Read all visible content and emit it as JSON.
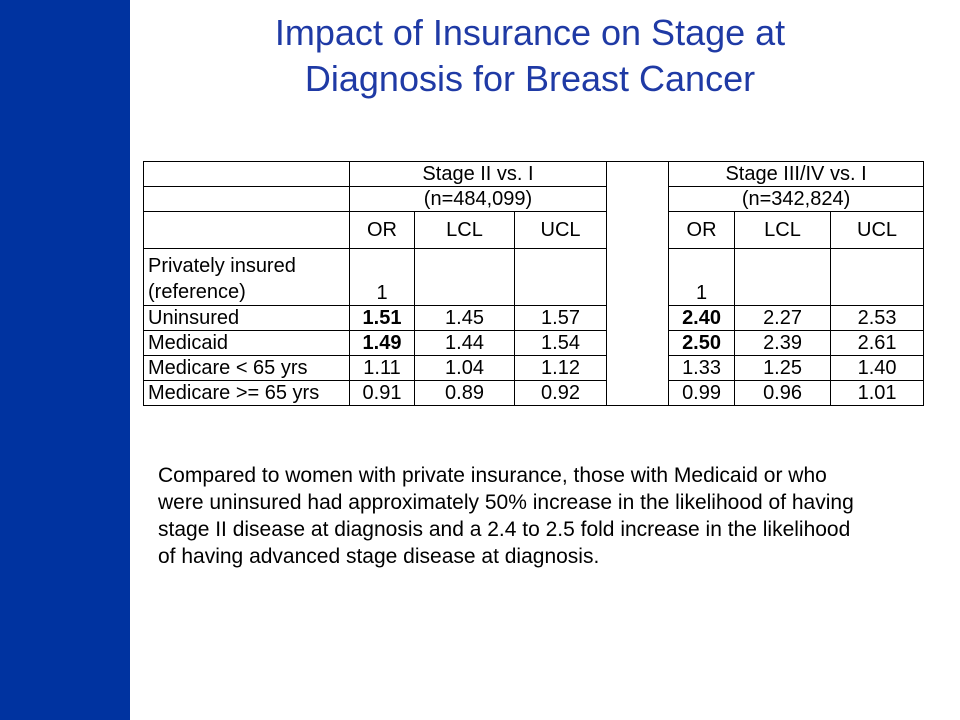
{
  "slide": {
    "title_line1": "Impact of Insurance on Stage at",
    "title_line2": "Diagnosis for Breast Cancer",
    "accent_color": "#0033a0",
    "title_color": "#1f3aa5"
  },
  "table": {
    "group1_label": "Stage II vs. I",
    "group1_n": "(n=484,099)",
    "group2_label": "Stage III/IV vs. I",
    "group2_n": "(n=342,824)",
    "col_headers": [
      "OR",
      "LCL",
      "UCL",
      "OR",
      "LCL",
      "UCL"
    ],
    "rows": [
      {
        "label": "Privately insured (reference)",
        "g1": [
          "1",
          "",
          ""
        ],
        "g2": [
          "1",
          "",
          ""
        ]
      },
      {
        "label": "Uninsured",
        "g1": [
          "1.51",
          "1.45",
          "1.57"
        ],
        "g2": [
          "2.40",
          "2.27",
          "2.53"
        ]
      },
      {
        "label": "Medicaid",
        "g1": [
          "1.49",
          "1.44",
          "1.54"
        ],
        "g2": [
          "2.50",
          "2.39",
          "2.61"
        ]
      },
      {
        "label": "Medicare < 65 yrs",
        "g1": [
          "1.11",
          "1.04",
          "1.12"
        ],
        "g2": [
          "1.33",
          "1.25",
          "1.40"
        ]
      },
      {
        "label": "Medicare >= 65 yrs",
        "g1": [
          "0.91",
          "0.89",
          "0.92"
        ],
        "g2": [
          "0.99",
          "0.96",
          "1.01"
        ]
      }
    ]
  },
  "caption": "Compared to women with private insurance, those with Medicaid or who were uninsured had approximately 50% increase in the likelihood of having stage II disease at diagnosis and a 2.4 to 2.5 fold increase in the likelihood of having advanced stage disease at diagnosis."
}
